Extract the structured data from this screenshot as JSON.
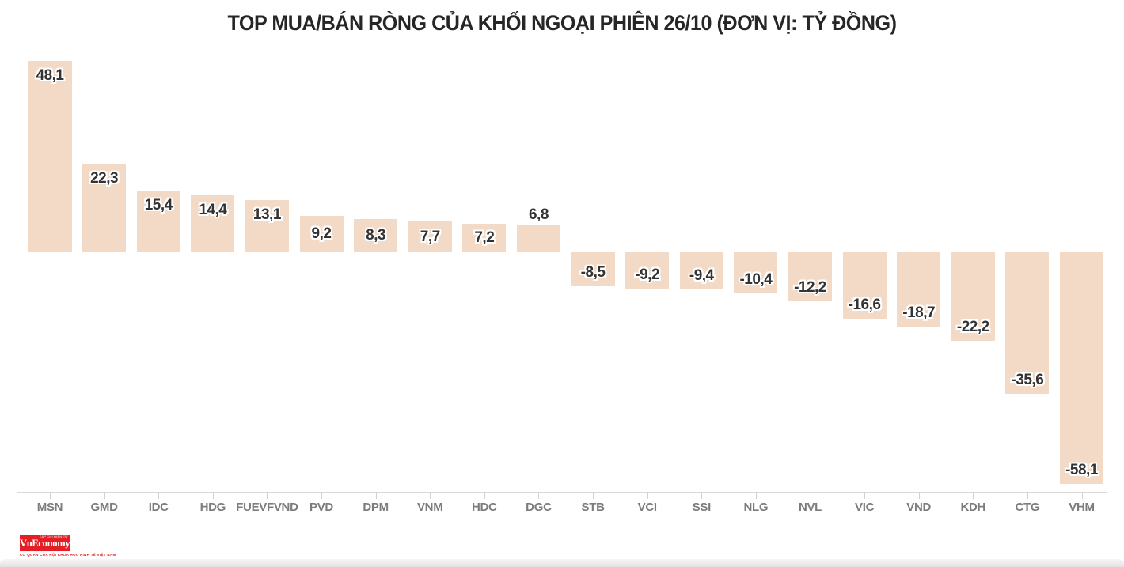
{
  "chart_data": {
    "type": "bar",
    "title": "TOP MUA/BÁN RÒNG CỦA KHỐI NGOẠI PHIÊN 26/10 (ĐƠN VỊ: TỶ ĐỒNG)",
    "unit": "tỷ đồng",
    "categories": [
      "MSN",
      "GMD",
      "IDC",
      "HDG",
      "FUEVFVND",
      "PVD",
      "DPM",
      "VNM",
      "HDC",
      "DGC",
      "STB",
      "VCI",
      "SSI",
      "NLG",
      "NVL",
      "VIC",
      "VND",
      "KDH",
      "CTG",
      "VHM"
    ],
    "values": [
      48.1,
      22.3,
      15.4,
      14.4,
      13.1,
      9.2,
      8.3,
      7.7,
      7.2,
      6.8,
      -8.5,
      -9.2,
      -9.4,
      -10.4,
      -12.2,
      -16.6,
      -18.7,
      -22.2,
      -35.6,
      -58.1
    ],
    "value_labels": [
      "48,1",
      "22,3",
      "15,4",
      "14,4",
      "13,1",
      "9,2",
      "8,3",
      "7,7",
      "7,2",
      "6,8",
      "-8,5",
      "-9,2",
      "-9,4",
      "-10,4",
      "-12,2",
      "-16,6",
      "-18,7",
      "-22,2",
      "-35,6",
      "-58,1"
    ],
    "bar_color": "#f3dac6",
    "label_color": "#333333",
    "axis_label_color": "#7c7c7c",
    "axis_line_color": "#d9d9d9",
    "ylim": [
      -60,
      50
    ],
    "grid": false,
    "legend": false,
    "xlabel": "",
    "ylabel": ""
  },
  "branding": {
    "logo_text": "VnEconomy",
    "tagline_top": "TẠP CHÍ ĐIỆN TỬ",
    "tagline_bottom": "CƠ QUAN CỦA HỘI KHOA HỌC KINH TẾ VIỆT NAM",
    "logo_bg_color": "#e31e24",
    "logo_text_color": "#ffffff"
  }
}
